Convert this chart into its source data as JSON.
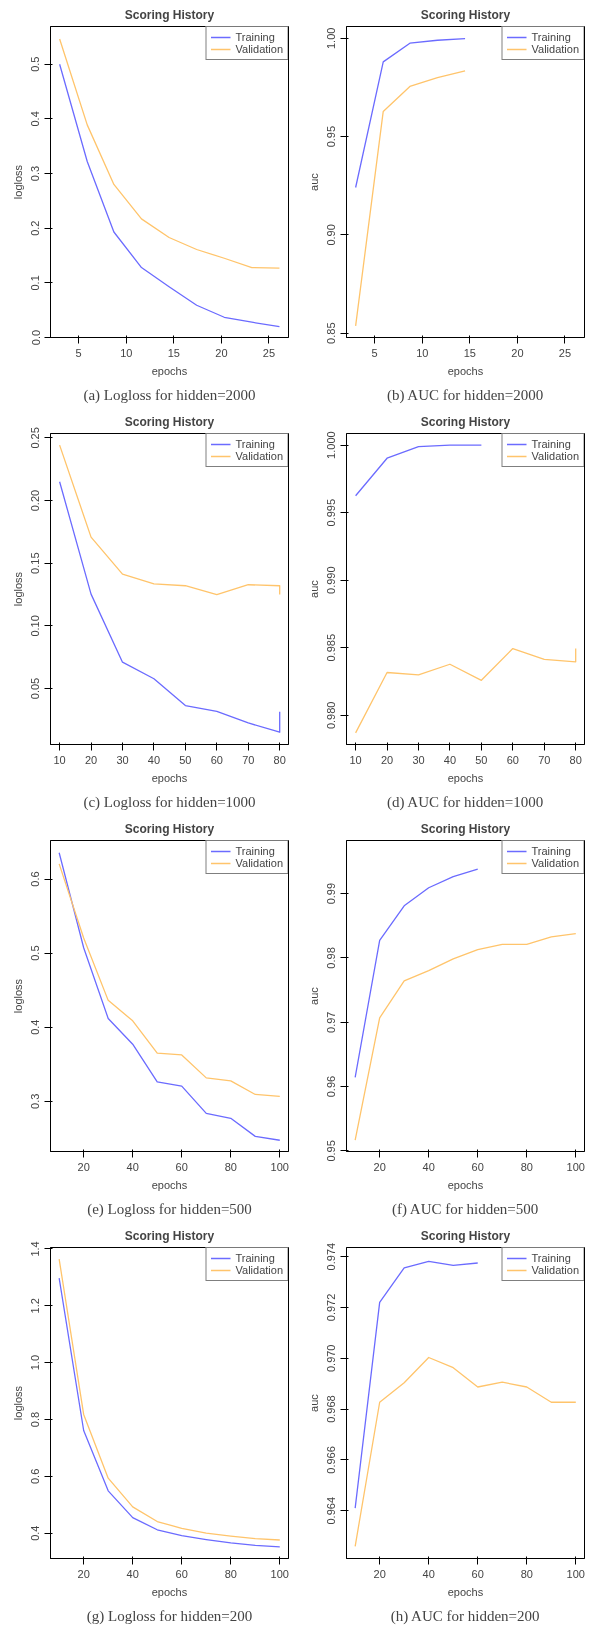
{
  "chart_data": [
    {
      "type": "line",
      "title": "Scoring History",
      "xlabel": "epochs",
      "ylabel": "logloss",
      "annotations": [
        "(a) Logloss for hidden=2000"
      ],
      "x": [
        3,
        5.9,
        8.7,
        11.6,
        14.5,
        17.4,
        20.3,
        23.2,
        26.1
      ],
      "xlim": [
        2.04,
        27.05
      ],
      "xticks": [
        5,
        10,
        15,
        20,
        25
      ],
      "ylim": [
        0,
        0.569
      ],
      "yticks": [
        {
          "value": 0,
          "label": "0.0"
        },
        0.1,
        0.2,
        0.3,
        0.4,
        0.5
      ],
      "legend": "top right",
      "series": [
        {
          "name": "Training",
          "color": "#6b6bff",
          "values": [
            0.5,
            0.322,
            0.193,
            0.128,
            0.093,
            0.059,
            0.037,
            0.028,
            0.02
          ]
        },
        {
          "name": "Validation",
          "color": "#ffc46b",
          "values": [
            0.546,
            0.389,
            0.28,
            0.217,
            0.183,
            0.161,
            0.145,
            0.128,
            0.127
          ]
        }
      ]
    },
    {
      "type": "line",
      "title": "Scoring History",
      "xlabel": "epochs",
      "ylabel": "auc",
      "annotations": [
        "(b) AUC for hidden=2000"
      ],
      "x": [
        3,
        5.9,
        8.7,
        11.6,
        14.5
      ],
      "xlim": [
        2.04,
        27.05
      ],
      "xticks": [
        5,
        10,
        15,
        20,
        25
      ],
      "ylim": [
        0.8478,
        1.006
      ],
      "yticks": [
        0.85,
        {
          "value": 0.9,
          "label": "0.90"
        },
        0.95,
        {
          "value": 1,
          "label": "1.00"
        }
      ],
      "legend": "top right",
      "series": [
        {
          "name": "Training",
          "color": "#6b6bff",
          "values": [
            0.9241,
            0.988,
            0.9975,
            0.999,
            0.9998
          ]
        },
        {
          "name": "Validation",
          "color": "#ffc46b",
          "values": [
            0.8537,
            0.9628,
            0.9755,
            0.98,
            0.9834
          ]
        }
      ]
    },
    {
      "type": "line",
      "title": "Scoring History",
      "xlabel": "epochs",
      "ylabel": "logloss",
      "annotations": [
        "(c) Logloss for hidden=1000"
      ],
      "x": [
        10,
        20,
        30,
        40,
        50,
        60,
        70,
        80,
        80
      ],
      "xlim": [
        7.1,
        82.8
      ],
      "xticks": [
        10,
        20,
        30,
        40,
        50,
        60,
        70,
        80
      ],
      "ylim": [
        0.0053,
        0.2535
      ],
      "yticks": [
        0.05,
        {
          "value": 0.1,
          "label": "0.10"
        },
        0.15,
        {
          "value": 0.2,
          "label": "0.20"
        },
        0.25
      ],
      "legend": "top right",
      "series": [
        {
          "name": "Training",
          "color": "#6b6bff",
          "values": [
            0.215,
            0.1253,
            0.071,
            0.0578,
            0.0364,
            0.0318,
            0.0225,
            0.0151,
            0.0314
          ]
        },
        {
          "name": "Validation",
          "color": "#ffc46b",
          "values": [
            0.2442,
            0.1708,
            0.1413,
            0.1335,
            0.132,
            0.125,
            0.1328,
            0.132,
            0.125
          ]
        }
      ]
    },
    {
      "type": "line",
      "title": "Scoring History",
      "xlabel": "epochs",
      "ylabel": "auc",
      "annotations": [
        "(d) AUC for hidden=1000"
      ],
      "x": [
        10,
        20,
        30,
        40,
        50,
        60,
        70,
        80,
        80
      ],
      "xlim": [
        7.1,
        82.8
      ],
      "xticks": [
        10,
        20,
        30,
        40,
        50,
        60,
        70,
        80
      ],
      "ylim": [
        0.97784,
        1.00086
      ],
      "yticks": [
        {
          "value": 0.98,
          "label": "0.980"
        },
        0.985,
        {
          "value": 0.99,
          "label": "0.990"
        },
        0.995,
        {
          "value": 1,
          "label": "1.000"
        }
      ],
      "legend": "top right",
      "series": [
        {
          "name": "Training",
          "color": "#6b6bff",
          "values": [
            0.99625,
            0.99903,
            0.99989,
            1.0,
            1.0,
            null,
            null,
            null,
            null
          ]
        },
        {
          "name": "Validation",
          "color": "#ffc46b",
          "values": [
            0.9787,
            0.98317,
            0.98299,
            0.98378,
            0.98259,
            0.98494,
            0.98414,
            0.98396,
            0.98494
          ]
        }
      ]
    },
    {
      "type": "line",
      "title": "Scoring History",
      "xlabel": "epochs",
      "ylabel": "logloss",
      "annotations": [
        "(e) Logloss for hidden=500"
      ],
      "x": [
        10,
        20,
        30,
        40,
        50,
        60,
        70,
        80,
        90,
        100
      ],
      "xlim": [
        6.47,
        103.55
      ],
      "xticks": [
        20,
        40,
        60,
        80,
        100
      ],
      "ylim": [
        0.2322,
        0.652
      ],
      "yticks": [
        0.3,
        0.4,
        0.5,
        0.6
      ],
      "legend": "top right",
      "series": [
        {
          "name": "Training",
          "color": "#6b6bff",
          "values": [
            0.6355,
            0.5072,
            0.4118,
            0.377,
            0.3263,
            0.3204,
            0.2836,
            0.277,
            0.2526,
            0.2474
          ]
        },
        {
          "name": "Validation",
          "color": "#ffc46b",
          "values": [
            0.6204,
            0.5204,
            0.4362,
            0.4086,
            0.3651,
            0.3625,
            0.3316,
            0.3276,
            0.3092,
            0.3066
          ]
        }
      ]
    },
    {
      "type": "line",
      "title": "Scoring History",
      "xlabel": "epochs",
      "ylabel": "auc",
      "annotations": [
        "(f) AUC for hidden=500"
      ],
      "x": [
        10,
        20,
        30,
        40,
        50,
        60,
        70,
        80,
        90,
        100
      ],
      "xlim": [
        6.47,
        103.55
      ],
      "xticks": [
        20,
        40,
        60,
        80,
        100
      ],
      "ylim": [
        0.9499,
        0.99826
      ],
      "yticks": [
        0.95,
        0.96,
        0.97,
        0.98,
        0.99
      ],
      "legend": "top right",
      "series": [
        {
          "name": "Training",
          "color": "#6b6bff",
          "values": [
            0.96144,
            0.98273,
            0.98811,
            0.99091,
            0.99265,
            0.99379,
            null,
            null,
            null,
            null
          ]
        },
        {
          "name": "Validation",
          "color": "#ffc46b",
          "values": [
            0.95167,
            0.97068,
            0.97644,
            0.97803,
            0.97985,
            0.98129,
            0.98212,
            0.98212,
            0.98326,
            0.98379
          ]
        }
      ]
    },
    {
      "type": "line",
      "title": "Scoring History",
      "xlabel": "epochs",
      "ylabel": "logloss",
      "annotations": [
        "(g) Logloss for hidden=200"
      ],
      "x": [
        10,
        20,
        30,
        40,
        50,
        60,
        70,
        80,
        90,
        100
      ],
      "xlim": [
        6.47,
        103.55
      ],
      "xticks": [
        20,
        40,
        60,
        80,
        100
      ],
      "ylim": [
        0.311,
        1.405
      ],
      "yticks": [
        0.4,
        0.6,
        0.8,
        {
          "value": 1,
          "label": "1.0"
        },
        1.2,
        1.4
      ],
      "legend": "top right",
      "series": [
        {
          "name": "Training",
          "color": "#6b6bff",
          "values": [
            1.2973,
            0.7613,
            0.549,
            0.4548,
            0.412,
            0.3914,
            0.3777,
            0.3658,
            0.3572,
            0.3521
          ]
        },
        {
          "name": "Validation",
          "color": "#ffc46b",
          "values": [
            1.364,
            0.8178,
            0.5935,
            0.4925,
            0.4411,
            0.4171,
            0.4,
            0.3897,
            0.3812,
            0.376
          ]
        }
      ]
    },
    {
      "type": "line",
      "title": "Scoring History",
      "xlabel": "epochs",
      "ylabel": "auc",
      "annotations": [
        "(h) AUC for hidden=200"
      ],
      "x": [
        10,
        20,
        30,
        40,
        50,
        60,
        70,
        80,
        90,
        100
      ],
      "xlim": [
        6.47,
        103.55
      ],
      "xticks": [
        20,
        40,
        60,
        80,
        100
      ],
      "ylim": [
        0.96212,
        0.97436
      ],
      "yticks": [
        0.964,
        0.966,
        0.968,
        {
          "value": 0.97,
          "label": "0.970"
        },
        0.972,
        0.974
      ],
      "legend": "top right",
      "series": [
        {
          "name": "Training",
          "color": "#6b6bff",
          "values": [
            0.9641,
            0.9722,
            0.97356,
            0.97381,
            0.97366,
            0.97375,
            null,
            null,
            null,
            null
          ]
        },
        {
          "name": "Validation",
          "color": "#ffc46b",
          "values": [
            0.9626,
            0.96827,
            0.96904,
            0.97003,
            0.96963,
            0.96887,
            0.96906,
            0.96887,
            0.96827,
            0.96827
          ]
        }
      ]
    }
  ]
}
